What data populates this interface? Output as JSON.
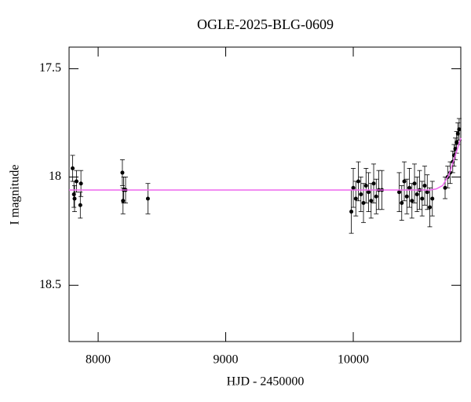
{
  "chart_data": {
    "type": "scatter",
    "title": "OGLE-2025-BLG-0609",
    "xlabel": "HJD - 2450000",
    "ylabel": "I magnitude",
    "xlim": [
      7772,
      10843
    ],
    "ylim": [
      18.76,
      17.4
    ],
    "xticks": [
      8000,
      9000,
      10000
    ],
    "yticks": [
      17.5,
      18,
      18.5
    ],
    "series": [
      {
        "color": "#000000",
        "mode": "errorbar",
        "x": [
          7800,
          7810,
          7815,
          7830,
          7860,
          7865,
          8190,
          8195,
          8200,
          8215,
          8390,
          9985,
          10000,
          10020,
          10040,
          10060,
          10080,
          10100,
          10120,
          10140,
          10160,
          10180,
          10200,
          10225,
          10360,
          10380,
          10400,
          10420,
          10440,
          10460,
          10480,
          10500,
          10520,
          10540,
          10560,
          10580,
          10600,
          10620,
          10720,
          10740,
          10760,
          10780,
          10790,
          10800,
          10810,
          10820,
          10830
        ],
        "values": [
          17.96,
          18.08,
          18.1,
          18.02,
          18.13,
          18.03,
          17.98,
          18.11,
          18.06,
          18.06,
          18.1,
          18.16,
          18.05,
          18.1,
          18.02,
          18.08,
          18.12,
          18.04,
          18.07,
          18.11,
          18.03,
          18.09,
          18.06,
          18.06,
          18.07,
          18.12,
          18.02,
          18.09,
          18.05,
          18.11,
          18.03,
          18.08,
          18.06,
          18.1,
          18.04,
          18.07,
          18.14,
          18.1,
          18.05,
          18.0,
          17.98,
          17.93,
          17.9,
          17.87,
          17.84,
          17.8,
          17.78
        ],
        "errors": [
          0.06,
          0.06,
          0.06,
          0.05,
          0.06,
          0.06,
          0.06,
          0.06,
          0.06,
          0.06,
          0.07,
          0.1,
          0.09,
          0.08,
          0.09,
          0.08,
          0.09,
          0.08,
          0.09,
          0.08,
          0.09,
          0.08,
          0.09,
          0.09,
          0.09,
          0.08,
          0.09,
          0.08,
          0.09,
          0.08,
          0.09,
          0.08,
          0.09,
          0.08,
          0.09,
          0.08,
          0.09,
          0.08,
          0.05,
          0.05,
          0.05,
          0.05,
          0.05,
          0.05,
          0.05,
          0.05,
          0.05
        ]
      },
      {
        "color": "#ee66ee",
        "mode": "line",
        "x": [
          7772,
          10600,
          10650,
          10700,
          10750,
          10800,
          10843
        ],
        "values": [
          18.06,
          18.06,
          18.055,
          18.04,
          17.99,
          17.9,
          17.82
        ]
      }
    ]
  }
}
